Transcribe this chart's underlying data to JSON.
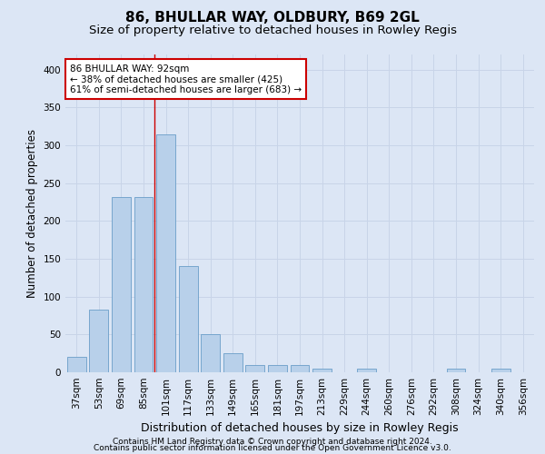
{
  "title": "86, BHULLAR WAY, OLDBURY, B69 2GL",
  "subtitle": "Size of property relative to detached houses in Rowley Regis",
  "xlabel": "Distribution of detached houses by size in Rowley Regis",
  "ylabel": "Number of detached properties",
  "categories": [
    "37sqm",
    "53sqm",
    "69sqm",
    "85sqm",
    "101sqm",
    "117sqm",
    "133sqm",
    "149sqm",
    "165sqm",
    "181sqm",
    "197sqm",
    "213sqm",
    "229sqm",
    "244sqm",
    "260sqm",
    "276sqm",
    "292sqm",
    "308sqm",
    "324sqm",
    "340sqm",
    "356sqm"
  ],
  "values": [
    20,
    83,
    232,
    232,
    315,
    140,
    50,
    25,
    10,
    10,
    10,
    5,
    0,
    5,
    0,
    0,
    0,
    5,
    0,
    5,
    0
  ],
  "bar_color": "#b8d0ea",
  "bar_edge_color": "#6a9ec8",
  "annotation_text": "86 BHULLAR WAY: 92sqm\n← 38% of detached houses are smaller (425)\n61% of semi-detached houses are larger (683) →",
  "annotation_box_color": "#ffffff",
  "annotation_box_edge_color": "#cc0000",
  "redline_x": 3.5,
  "ylim": [
    0,
    420
  ],
  "yticks": [
    0,
    50,
    100,
    150,
    200,
    250,
    300,
    350,
    400
  ],
  "grid_color": "#c8d4e8",
  "background_color": "#dce6f5",
  "plot_bg_color": "#dce6f5",
  "footer_line1": "Contains HM Land Registry data © Crown copyright and database right 2024.",
  "footer_line2": "Contains public sector information licensed under the Open Government Licence v3.0.",
  "title_fontsize": 11,
  "subtitle_fontsize": 9.5,
  "xlabel_fontsize": 9,
  "ylabel_fontsize": 8.5,
  "tick_fontsize": 7.5,
  "footer_fontsize": 6.5
}
